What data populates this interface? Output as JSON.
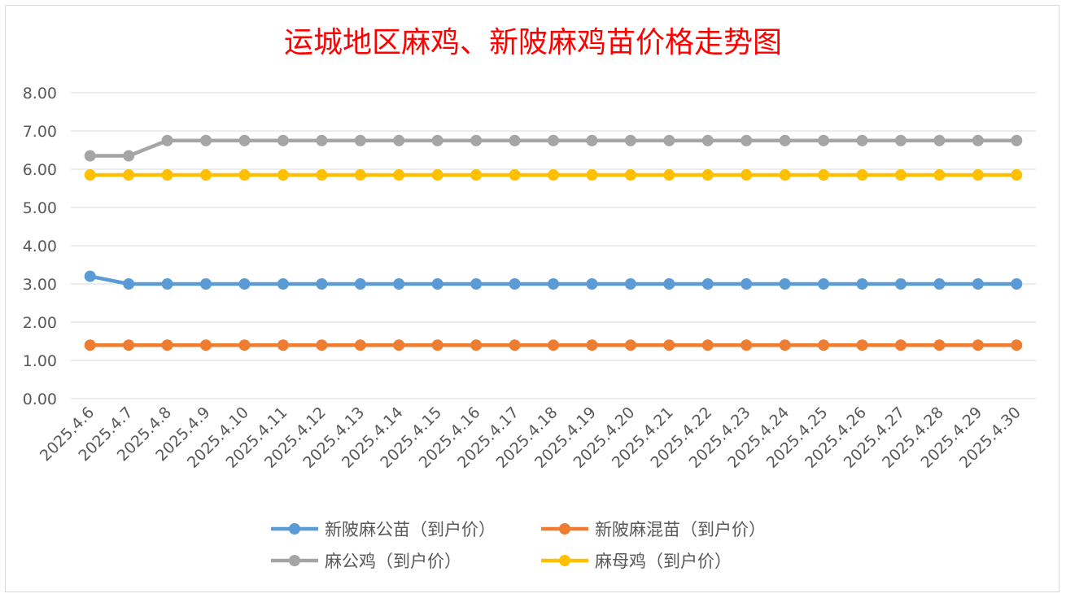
{
  "chart_data": {
    "type": "line",
    "title": "运城地区麻鸡、新陂麻鸡苗价格走势图",
    "xlabel": "",
    "ylabel": "",
    "ylim": [
      0,
      8
    ],
    "yticks": [
      "0.00",
      "1.00",
      "2.00",
      "3.00",
      "4.00",
      "5.00",
      "6.00",
      "7.00",
      "8.00"
    ],
    "grid": true,
    "legend_position": "bottom",
    "categories": [
      "2025.4.6",
      "2025.4.7",
      "2025.4.8",
      "2025.4.9",
      "2025.4.10",
      "2025.4.11",
      "2025.4.12",
      "2025.4.13",
      "2025.4.14",
      "2025.4.15",
      "2025.4.16",
      "2025.4.17",
      "2025.4.18",
      "2025.4.19",
      "2025.4.20",
      "2025.4.21",
      "2025.4.22",
      "2025.4.23",
      "2025.4.24",
      "2025.4.25",
      "2025.4.26",
      "2025.4.27",
      "2025.4.28",
      "2025.4.29",
      "2025.4.30"
    ],
    "series": [
      {
        "name": "新陂麻公苗（到户价）",
        "color": "#5b9bd5",
        "values": [
          3.2,
          3.0,
          3.0,
          3.0,
          3.0,
          3.0,
          3.0,
          3.0,
          3.0,
          3.0,
          3.0,
          3.0,
          3.0,
          3.0,
          3.0,
          3.0,
          3.0,
          3.0,
          3.0,
          3.0,
          3.0,
          3.0,
          3.0,
          3.0,
          3.0
        ]
      },
      {
        "name": "新陂麻混苗（到户价）",
        "color": "#ed7d31",
        "values": [
          1.4,
          1.4,
          1.4,
          1.4,
          1.4,
          1.4,
          1.4,
          1.4,
          1.4,
          1.4,
          1.4,
          1.4,
          1.4,
          1.4,
          1.4,
          1.4,
          1.4,
          1.4,
          1.4,
          1.4,
          1.4,
          1.4,
          1.4,
          1.4,
          1.4
        ]
      },
      {
        "name": "麻公鸡（到户价）",
        "color": "#a5a5a5",
        "values": [
          6.35,
          6.35,
          6.75,
          6.75,
          6.75,
          6.75,
          6.75,
          6.75,
          6.75,
          6.75,
          6.75,
          6.75,
          6.75,
          6.75,
          6.75,
          6.75,
          6.75,
          6.75,
          6.75,
          6.75,
          6.75,
          6.75,
          6.75,
          6.75,
          6.75
        ]
      },
      {
        "name": "麻母鸡（到户价）",
        "color": "#ffc000",
        "values": [
          5.85,
          5.85,
          5.85,
          5.85,
          5.85,
          5.85,
          5.85,
          5.85,
          5.85,
          5.85,
          5.85,
          5.85,
          5.85,
          5.85,
          5.85,
          5.85,
          5.85,
          5.85,
          5.85,
          5.85,
          5.85,
          5.85,
          5.85,
          5.85,
          5.85
        ]
      }
    ]
  }
}
